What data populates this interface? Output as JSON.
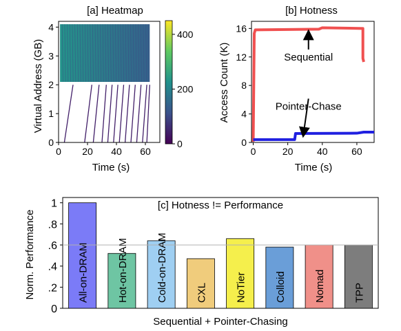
{
  "chart_data": [
    {
      "id": "a",
      "type": "heatmap",
      "title": "[a] Heatmap",
      "xlabel": "Time (s)",
      "ylabel": "Virtual Address (GB)",
      "xlim": [
        0,
        70
      ],
      "ylim": [
        0,
        4.2
      ],
      "xticks": [
        0,
        20,
        40,
        60
      ],
      "yticks": [
        0,
        1,
        2,
        3,
        4
      ],
      "colorbar": {
        "ticks": [
          0,
          200,
          400
        ],
        "range": [
          0,
          450
        ],
        "colors": [
          "#440154",
          "#3b528b",
          "#21918c",
          "#5ec962",
          "#fde725"
        ]
      },
      "regions": [
        {
          "name": "dense",
          "y_range": [
            2.1,
            4.1
          ],
          "x_range": [
            1,
            63
          ],
          "value_start": 230,
          "value_end": 140
        }
      ],
      "sweeps": [
        {
          "x_start": 4,
          "x_end": 10,
          "y_start": 0,
          "y_end": 2
        },
        {
          "x_start": 18,
          "x_end": 23,
          "y_start": 0,
          "y_end": 2
        },
        {
          "x_start": 24,
          "x_end": 28,
          "y_start": 0,
          "y_end": 2
        },
        {
          "x_start": 30,
          "x_end": 33,
          "y_start": 0,
          "y_end": 2
        },
        {
          "x_start": 34,
          "x_end": 37,
          "y_start": 0,
          "y_end": 2
        },
        {
          "x_start": 38,
          "x_end": 41,
          "y_start": 0,
          "y_end": 2
        },
        {
          "x_start": 42,
          "x_end": 45,
          "y_start": 0,
          "y_end": 2
        },
        {
          "x_start": 46,
          "x_end": 49,
          "y_start": 0,
          "y_end": 2
        },
        {
          "x_start": 50,
          "x_end": 53,
          "y_start": 0,
          "y_end": 2
        },
        {
          "x_start": 54,
          "x_end": 57,
          "y_start": 0,
          "y_end": 2
        },
        {
          "x_start": 58,
          "x_end": 61,
          "y_start": 0,
          "y_end": 2
        },
        {
          "x_start": 61,
          "x_end": 63,
          "y_start": 0,
          "y_end": 2
        }
      ]
    },
    {
      "id": "b",
      "type": "line",
      "title": "[b] Hotness",
      "xlabel": "Time (s)",
      "ylabel": "Access Count (K)",
      "xlim": [
        -1,
        70
      ],
      "ylim": [
        0,
        17
      ],
      "xticks": [
        0,
        20,
        40,
        60
      ],
      "yticks": [
        0,
        4,
        8,
        12,
        16
      ],
      "series": [
        {
          "name": "Sequential",
          "color": "#f05050",
          "x": [
            0,
            0.6,
            1.2,
            20,
            38,
            40,
            63.5,
            63.5,
            64
          ],
          "y": [
            0.1,
            15.3,
            15.8,
            15.85,
            15.9,
            16.1,
            16.0,
            11.8,
            11.3
          ]
        },
        {
          "name": "Pointer-Chase",
          "color": "#2020e0",
          "x": [
            0,
            1,
            24,
            24.5,
            60,
            64,
            70
          ],
          "y": [
            0.4,
            0.4,
            0.4,
            1.25,
            1.3,
            1.45,
            1.45
          ]
        }
      ],
      "annotations": [
        {
          "text": "Sequential",
          "x": 32,
          "y": 11.5,
          "arrow_to": [
            32,
            16.0
          ]
        },
        {
          "text": "Pointer-Chase",
          "x": 32,
          "y": 4.6,
          "arrow_to": [
            29,
            1.5
          ]
        }
      ]
    },
    {
      "id": "c",
      "type": "bar",
      "title": "[c] Hotness != Performance",
      "xlabel": "Sequential + Pointer-Chasing",
      "ylabel": "Norm. Performance",
      "ylim": [
        0,
        1.05
      ],
      "yticks": [
        0,
        0.2,
        0.4,
        0.6,
        0.8,
        1
      ],
      "ytick_labels": [
        "0",
        ".2",
        ".4",
        ".6",
        ".8",
        "1"
      ],
      "reference_line": 0.6,
      "categories": [
        "All-on-DRAM",
        "Hot-on-DRAM",
        "Cold-on-DRAM",
        "CXL",
        "NoTier",
        "Colloid",
        "Nomad",
        "TPP"
      ],
      "values": [
        1.0,
        0.52,
        0.64,
        0.47,
        0.66,
        0.58,
        0.6,
        0.6
      ],
      "colors": [
        "#7b7bf7",
        "#6ec5a3",
        "#9fcff2",
        "#f0cc7c",
        "#f5ef4c",
        "#6a9ed8",
        "#f09089",
        "#7d7d7d"
      ]
    }
  ]
}
